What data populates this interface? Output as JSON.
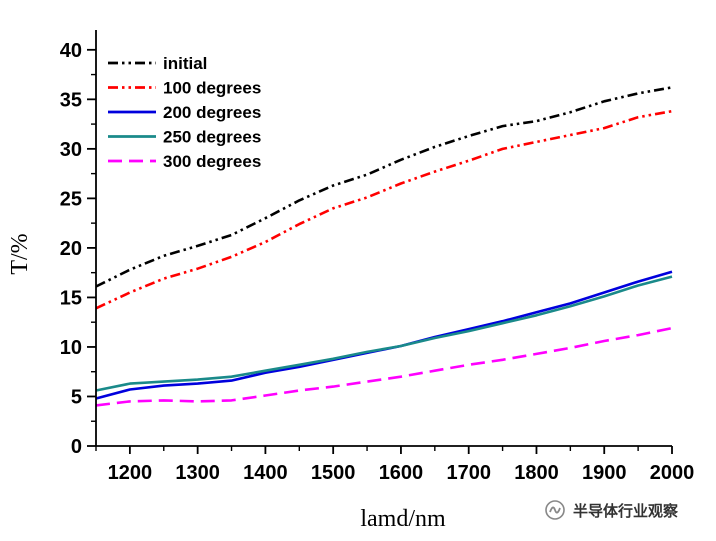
{
  "chart_data": {
    "type": "line",
    "title": "",
    "xlabel": "lamd/nm",
    "ylabel": "T/%",
    "xlim": [
      1150,
      2000
    ],
    "ylim": [
      0,
      42
    ],
    "xticks": [
      1200,
      1300,
      1400,
      1500,
      1600,
      1700,
      1800,
      1900,
      2000
    ],
    "yticks": [
      0,
      5,
      10,
      15,
      20,
      25,
      30,
      35,
      40
    ],
    "grid": false,
    "legend_position": "top-left",
    "series": [
      {
        "name": "initial",
        "color": "#000000",
        "dash": "dashdotdot",
        "x": [
          1150,
          1200,
          1250,
          1300,
          1350,
          1400,
          1450,
          1500,
          1550,
          1600,
          1650,
          1700,
          1750,
          1800,
          1850,
          1900,
          1950,
          2000
        ],
        "y": [
          16.1,
          17.8,
          19.2,
          20.2,
          21.3,
          23.0,
          24.8,
          26.3,
          27.4,
          28.9,
          30.2,
          31.3,
          32.3,
          32.8,
          33.7,
          34.8,
          35.6,
          36.2
        ]
      },
      {
        "name": "100 degrees",
        "color": "#ff0000",
        "dash": "dashdotdot",
        "x": [
          1150,
          1200,
          1250,
          1300,
          1350,
          1400,
          1450,
          1500,
          1550,
          1600,
          1650,
          1700,
          1750,
          1800,
          1850,
          1900,
          1950,
          2000
        ],
        "y": [
          13.9,
          15.5,
          16.9,
          17.9,
          19.1,
          20.6,
          22.4,
          24.0,
          25.1,
          26.5,
          27.7,
          28.8,
          30.0,
          30.7,
          31.4,
          32.1,
          33.2,
          33.8
        ]
      },
      {
        "name": "200 degrees",
        "color": "#0000dd",
        "dash": "solid",
        "x": [
          1150,
          1200,
          1250,
          1300,
          1350,
          1400,
          1450,
          1500,
          1550,
          1600,
          1650,
          1700,
          1750,
          1800,
          1850,
          1900,
          1950,
          2000
        ],
        "y": [
          4.8,
          5.7,
          6.1,
          6.3,
          6.6,
          7.4,
          8.0,
          8.7,
          9.4,
          10.1,
          11.0,
          11.8,
          12.6,
          13.5,
          14.4,
          15.5,
          16.6,
          17.6
        ]
      },
      {
        "name": "250 degrees",
        "color": "#1a8a8a",
        "dash": "solid",
        "x": [
          1150,
          1200,
          1250,
          1300,
          1350,
          1400,
          1450,
          1500,
          1550,
          1600,
          1650,
          1700,
          1750,
          1800,
          1850,
          1900,
          1950,
          2000
        ],
        "y": [
          5.6,
          6.3,
          6.5,
          6.7,
          7.0,
          7.6,
          8.2,
          8.8,
          9.5,
          10.1,
          10.9,
          11.6,
          12.4,
          13.2,
          14.1,
          15.1,
          16.2,
          17.1
        ]
      },
      {
        "name": "300 degrees",
        "color": "#ff00ff",
        "dash": "dash",
        "x": [
          1150,
          1200,
          1250,
          1300,
          1350,
          1400,
          1450,
          1500,
          1550,
          1600,
          1650,
          1700,
          1750,
          1800,
          1850,
          1900,
          1950,
          2000
        ],
        "y": [
          4.1,
          4.5,
          4.6,
          4.5,
          4.6,
          5.1,
          5.6,
          6.0,
          6.5,
          7.0,
          7.6,
          8.2,
          8.7,
          9.3,
          9.9,
          10.6,
          11.2,
          11.9
        ]
      }
    ]
  },
  "watermark": {
    "text": "半导体行业观察",
    "icon": "wechat-channel-icon"
  }
}
